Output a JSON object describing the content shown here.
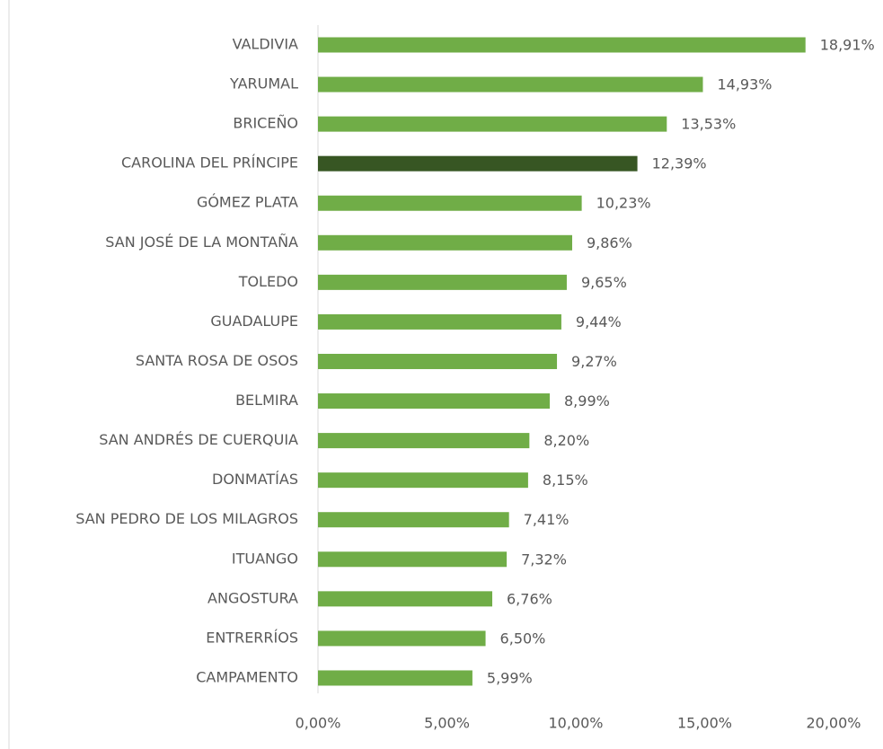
{
  "chart_data": {
    "type": "barh",
    "categories": [
      "VALDIVIA",
      "YARUMAL",
      "BRICEÑO",
      "CAROLINA DEL PRÍNCIPE",
      "GÓMEZ PLATA",
      "SAN JOSÉ DE LA MONTAÑA",
      "TOLEDO",
      "GUADALUPE",
      "SANTA ROSA DE OSOS",
      "BELMIRA",
      "SAN ANDRÉS DE CUERQUIA",
      "DONMATÍAS",
      "SAN PEDRO DE LOS MILAGROS",
      "ITUANGO",
      "ANGOSTURA",
      "ENTRERRÍOS",
      "CAMPAMENTO"
    ],
    "values": [
      18.91,
      14.93,
      13.53,
      12.39,
      10.23,
      9.86,
      9.65,
      9.44,
      9.27,
      8.99,
      8.2,
      8.15,
      7.41,
      7.32,
      6.76,
      6.5,
      5.99
    ],
    "value_labels": [
      "18,91%",
      "14,93%",
      "13,53%",
      "12,39%",
      "10,23%",
      "9,86%",
      "9,65%",
      "9,44%",
      "9,27%",
      "8,99%",
      "8,20%",
      "8,15%",
      "7,41%",
      "7,32%",
      "6,76%",
      "6,50%",
      "5,99%"
    ],
    "colors": [
      "#70ad47",
      "#70ad47",
      "#70ad47",
      "#375623",
      "#70ad47",
      "#70ad47",
      "#70ad47",
      "#70ad47",
      "#70ad47",
      "#70ad47",
      "#70ad47",
      "#70ad47",
      "#70ad47",
      "#70ad47",
      "#70ad47",
      "#70ad47",
      "#70ad47"
    ],
    "xlim": [
      0,
      20
    ],
    "xticks": [
      {
        "value": 0,
        "label": "0,00%"
      },
      {
        "value": 5,
        "label": "5,00%"
      },
      {
        "value": 10,
        "label": "10,00%"
      },
      {
        "value": 15,
        "label": "15,00%"
      },
      {
        "value": 20,
        "label": "20,00%"
      }
    ]
  }
}
